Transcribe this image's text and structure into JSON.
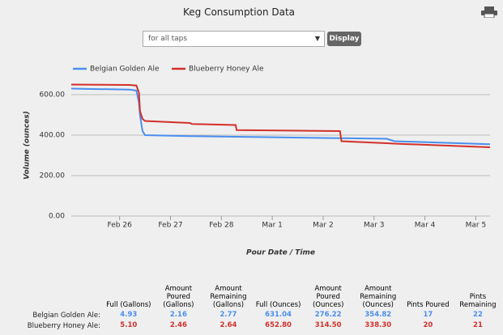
{
  "header": {
    "title": "Keg Consumption Data",
    "select": "for all taps",
    "button": "Display"
  },
  "chart_data": {
    "type": "line",
    "y_label": "Volume (ounces)",
    "x_label": "Pour Date / Time",
    "xlim": [
      -0.95,
      7.28
    ],
    "xticks": [
      {
        "value": 0,
        "label": "Feb 26"
      },
      {
        "value": 1,
        "label": "Feb 27"
      },
      {
        "value": 2,
        "label": "Feb 28"
      },
      {
        "value": 3,
        "label": "Mar 1"
      },
      {
        "value": 4,
        "label": "Mar 2"
      },
      {
        "value": 5,
        "label": "Mar 3"
      },
      {
        "value": 6,
        "label": "Mar 4"
      },
      {
        "value": 7,
        "label": "Mar 5"
      }
    ],
    "ylim": [
      0,
      700
    ],
    "yticks": [
      {
        "value": 0,
        "label": "0.00"
      },
      {
        "value": 200,
        "label": "200.00"
      },
      {
        "value": 400,
        "label": "400.00"
      },
      {
        "value": 600,
        "label": "600.00"
      }
    ],
    "grid": true,
    "x": [
      -0.95,
      0.2,
      0.33,
      0.38,
      0.4,
      0.45,
      0.5,
      1.38,
      1.42,
      2.28,
      2.3,
      4.33,
      4.36,
      5.25,
      5.4,
      7.28
    ],
    "series": [
      {
        "name": "Belgian Golden Ale",
        "color": "#4a8ef0",
        "values": [
          630,
          625,
          620,
          560,
          500,
          420,
          400,
          395,
          395,
          392,
          392,
          385,
          385,
          382,
          370,
          355
        ]
      },
      {
        "name": "Blueberry Honey Ale",
        "color": "#d2302a",
        "values": [
          650,
          648,
          645,
          610,
          520,
          480,
          470,
          460,
          455,
          450,
          425,
          420,
          370,
          360,
          358,
          340
        ]
      }
    ]
  },
  "table": {
    "columns": [
      "Full (Gallons)",
      "Amount Poured (Gallons)",
      "Amount Remaining (Gallons)",
      "Full (Ounces)",
      "Amount Poured (Ounces)",
      "Amount Remaining (Ounces)",
      "Pints Poured",
      "Pints Remaining"
    ],
    "rows": [
      {
        "label": "Belgian Golden Ale:",
        "color": "#4a8ef0",
        "cells": [
          "4.93",
          "2.16",
          "2.77",
          "631.04",
          "276.22",
          "354.82",
          "17",
          "22"
        ]
      },
      {
        "label": "Blueberry Honey Ale:",
        "color": "#d2302a",
        "cells": [
          "5.10",
          "2.46",
          "2.64",
          "652.80",
          "314.50",
          "338.30",
          "20",
          "21"
        ]
      }
    ]
  }
}
